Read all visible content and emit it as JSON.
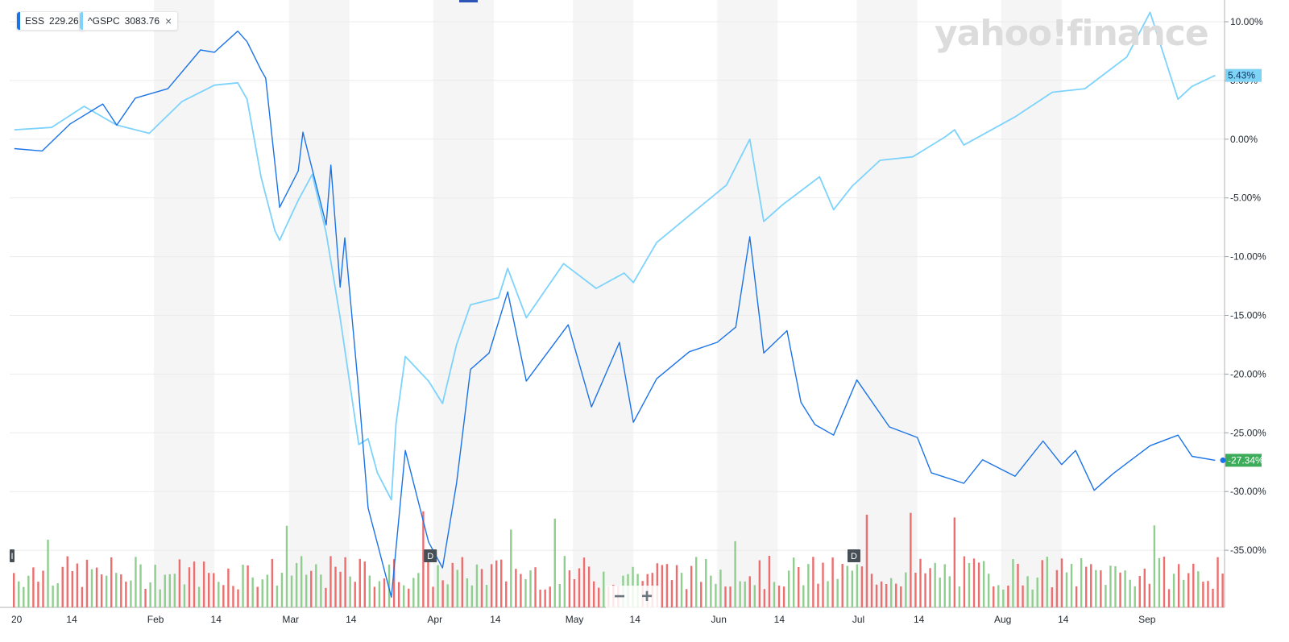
{
  "legend": {
    "ess": {
      "symbol": "ESS",
      "value": "229.26",
      "color": "#1b73e8"
    },
    "gspc": {
      "symbol": "^GSPC",
      "value": "3083.76",
      "color": "#7dd3fc",
      "close": "×"
    }
  },
  "watermark": "yahoo!finance",
  "zoom": {
    "minus": "−",
    "plus": "+"
  },
  "price_tags": {
    "gspc": "5.43%",
    "ess": "-27.34%"
  },
  "event_markers": [
    {
      "label": "I",
      "date": "2020-01-01"
    },
    {
      "label": "D",
      "date": "2020-03-30"
    },
    {
      "label": "D",
      "date": "2020-06-29"
    }
  ],
  "colors": {
    "ess_line": "#1b73e8",
    "gspc_line": "#7dd3fc",
    "vol_up": "#8fce8f",
    "vol_down": "#ec6e6e",
    "band": "#f5f5f5",
    "grid": "#ebebeb",
    "ess_tag": "#3dac5a",
    "gspc_tag": "#7fd4f5"
  },
  "chart_data": {
    "type": "line",
    "x_type": "date",
    "ylim": [
      -39,
      11
    ],
    "y_ticks": [
      10,
      5,
      0,
      -5,
      -10,
      -15,
      -20,
      -25,
      -30,
      -35
    ],
    "y_tick_labels": [
      "10.00%",
      "5.00%",
      "0.00%",
      "-5.00%",
      "-10.00%",
      "-15.00%",
      "-20.00%",
      "-25.00%",
      "-30.00%",
      "-35.00%"
    ],
    "x_range": [
      "2020-01-01",
      "2020-09-18"
    ],
    "x_ticks": [
      {
        "label": "20",
        "date": "2020-01-01"
      },
      {
        "label": "14",
        "date": "2020-01-14"
      },
      {
        "label": "Feb",
        "date": "2020-02-01"
      },
      {
        "label": "14",
        "date": "2020-02-14"
      },
      {
        "label": "Mar",
        "date": "2020-03-01"
      },
      {
        "label": "14",
        "date": "2020-03-14"
      },
      {
        "label": "Apr",
        "date": "2020-04-01"
      },
      {
        "label": "14",
        "date": "2020-04-14"
      },
      {
        "label": "May",
        "date": "2020-05-01"
      },
      {
        "label": "14",
        "date": "2020-05-14"
      },
      {
        "label": "Jun",
        "date": "2020-06-01"
      },
      {
        "label": "14",
        "date": "2020-06-14"
      },
      {
        "label": "Jul",
        "date": "2020-07-01"
      },
      {
        "label": "14",
        "date": "2020-07-14"
      },
      {
        "label": "Aug",
        "date": "2020-08-01"
      },
      {
        "label": "14",
        "date": "2020-08-14"
      },
      {
        "label": "Sep",
        "date": "2020-09-01"
      }
    ],
    "series": [
      {
        "name": "^GSPC",
        "color": "#7dd3fc",
        "points": [
          [
            "2020-01-02",
            0.8
          ],
          [
            "2020-01-10",
            1.0
          ],
          [
            "2020-01-17",
            2.8
          ],
          [
            "2020-01-24",
            1.2
          ],
          [
            "2020-01-31",
            0.5
          ],
          [
            "2020-02-07",
            3.2
          ],
          [
            "2020-02-14",
            4.6
          ],
          [
            "2020-02-19",
            4.8
          ],
          [
            "2020-02-21",
            3.4
          ],
          [
            "2020-02-24",
            -3.2
          ],
          [
            "2020-02-27",
            -7.8
          ],
          [
            "2020-02-28",
            -8.6
          ],
          [
            "2020-03-03",
            -5.2
          ],
          [
            "2020-03-06",
            -3.0
          ],
          [
            "2020-03-09",
            -8.0
          ],
          [
            "2020-03-12",
            -15.2
          ],
          [
            "2020-03-16",
            -26.0
          ],
          [
            "2020-03-18",
            -25.5
          ],
          [
            "2020-03-20",
            -28.4
          ],
          [
            "2020-03-23",
            -30.7
          ],
          [
            "2020-03-24",
            -24.2
          ],
          [
            "2020-03-26",
            -18.5
          ],
          [
            "2020-03-31",
            -20.6
          ],
          [
            "2020-04-03",
            -22.5
          ],
          [
            "2020-04-06",
            -17.5
          ],
          [
            "2020-04-09",
            -14.1
          ],
          [
            "2020-04-15",
            -13.5
          ],
          [
            "2020-04-17",
            -11.0
          ],
          [
            "2020-04-21",
            -15.2
          ],
          [
            "2020-04-29",
            -10.6
          ],
          [
            "2020-05-06",
            -12.7
          ],
          [
            "2020-05-12",
            -11.4
          ],
          [
            "2020-05-14",
            -12.2
          ],
          [
            "2020-05-19",
            -8.8
          ],
          [
            "2020-05-26",
            -6.5
          ],
          [
            "2020-06-03",
            -3.9
          ],
          [
            "2020-06-08",
            0.0
          ],
          [
            "2020-06-11",
            -7.0
          ],
          [
            "2020-06-15",
            -5.6
          ],
          [
            "2020-06-23",
            -3.2
          ],
          [
            "2020-06-26",
            -6.0
          ],
          [
            "2020-06-30",
            -4.0
          ],
          [
            "2020-07-06",
            -1.8
          ],
          [
            "2020-07-13",
            -1.5
          ],
          [
            "2020-07-20",
            0.2
          ],
          [
            "2020-07-22",
            0.8
          ],
          [
            "2020-07-24",
            -0.5
          ],
          [
            "2020-08-04",
            1.9
          ],
          [
            "2020-08-12",
            4.0
          ],
          [
            "2020-08-19",
            4.3
          ],
          [
            "2020-08-28",
            7.0
          ],
          [
            "2020-09-02",
            10.8
          ],
          [
            "2020-09-08",
            3.4
          ],
          [
            "2020-09-11",
            4.5
          ],
          [
            "2020-09-16",
            5.43
          ]
        ]
      },
      {
        "name": "ESS",
        "color": "#1b73e8",
        "points": [
          [
            "2020-01-02",
            -0.8
          ],
          [
            "2020-01-08",
            -1.0
          ],
          [
            "2020-01-14",
            1.3
          ],
          [
            "2020-01-21",
            3.0
          ],
          [
            "2020-01-24",
            1.2
          ],
          [
            "2020-01-28",
            3.5
          ],
          [
            "2020-02-04",
            4.3
          ],
          [
            "2020-02-11",
            7.6
          ],
          [
            "2020-02-14",
            7.4
          ],
          [
            "2020-02-19",
            9.2
          ],
          [
            "2020-02-21",
            8.3
          ],
          [
            "2020-02-24",
            5.9
          ],
          [
            "2020-02-25",
            5.2
          ],
          [
            "2020-02-28",
            -5.8
          ],
          [
            "2020-03-03",
            -2.7
          ],
          [
            "2020-03-04",
            0.6
          ],
          [
            "2020-03-09",
            -7.3
          ],
          [
            "2020-03-10",
            -2.2
          ],
          [
            "2020-03-12",
            -12.6
          ],
          [
            "2020-03-13",
            -8.4
          ],
          [
            "2020-03-16",
            -21.5
          ],
          [
            "2020-03-18",
            -31.4
          ],
          [
            "2020-03-20",
            -34.4
          ],
          [
            "2020-03-23",
            -39.0
          ],
          [
            "2020-03-26",
            -26.5
          ],
          [
            "2020-03-31",
            -34.3
          ],
          [
            "2020-04-03",
            -36.5
          ],
          [
            "2020-04-06",
            -29.3
          ],
          [
            "2020-04-09",
            -19.6
          ],
          [
            "2020-04-13",
            -18.2
          ],
          [
            "2020-04-17",
            -13.0
          ],
          [
            "2020-04-21",
            -20.6
          ],
          [
            "2020-04-30",
            -15.8
          ],
          [
            "2020-05-05",
            -22.8
          ],
          [
            "2020-05-11",
            -17.3
          ],
          [
            "2020-05-14",
            -24.1
          ],
          [
            "2020-05-19",
            -20.4
          ],
          [
            "2020-05-26",
            -18.1
          ],
          [
            "2020-06-01",
            -17.3
          ],
          [
            "2020-06-05",
            -16.0
          ],
          [
            "2020-06-08",
            -8.3
          ],
          [
            "2020-06-11",
            -18.2
          ],
          [
            "2020-06-16",
            -16.3
          ],
          [
            "2020-06-19",
            -22.4
          ],
          [
            "2020-06-22",
            -24.3
          ],
          [
            "2020-06-26",
            -25.2
          ],
          [
            "2020-07-01",
            -20.5
          ],
          [
            "2020-07-08",
            -24.5
          ],
          [
            "2020-07-14",
            -25.4
          ],
          [
            "2020-07-17",
            -28.4
          ],
          [
            "2020-07-24",
            -29.3
          ],
          [
            "2020-07-28",
            -27.3
          ],
          [
            "2020-08-04",
            -28.7
          ],
          [
            "2020-08-10",
            -25.7
          ],
          [
            "2020-08-14",
            -27.7
          ],
          [
            "2020-08-17",
            -26.5
          ],
          [
            "2020-08-21",
            -29.9
          ],
          [
            "2020-08-25",
            -28.5
          ],
          [
            "2020-09-02",
            -26.1
          ],
          [
            "2020-09-08",
            -25.2
          ],
          [
            "2020-09-11",
            -27.0
          ],
          [
            "2020-09-16",
            -27.34
          ]
        ]
      }
    ]
  }
}
